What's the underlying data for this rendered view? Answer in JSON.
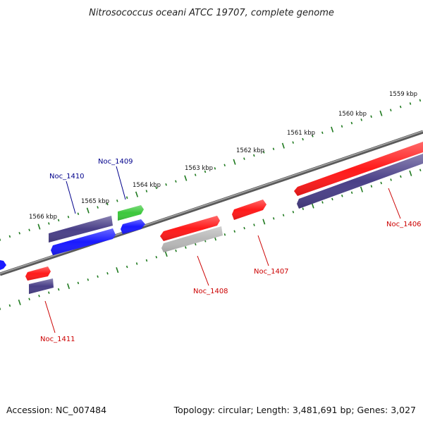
{
  "title": "Nitrosococcus oceani ATCC 19707, complete genome",
  "footer": {
    "accession": "Accession: NC_007484",
    "summary": "Topology: circular; Length: 3,481,691 bp; Genes: 3,027"
  },
  "scale_labels": [
    "1559 kbp",
    "1560 kbp",
    "1561 kbp",
    "1562 kbp",
    "1563 kbp",
    "1564 kbp",
    "1565 kbp",
    "1566 kbp"
  ],
  "colors": {
    "backbone": "#777777",
    "ticks": "#1f7a1f",
    "red_gene": "#ff1a1a",
    "navy_gene": "#4a4088",
    "blue_gene": "#1a1aff",
    "green_gene": "#3cc83c",
    "gray_gene": "#b8b8b8",
    "label_forward": "#00008b",
    "label_reverse": "#cc0000"
  },
  "gene_labels": [
    {
      "text": "Noc_1409",
      "strand": "forward"
    },
    {
      "text": "Noc_1410",
      "strand": "forward"
    },
    {
      "text": "Noc_1406",
      "strand": "reverse"
    },
    {
      "text": "Noc_1407",
      "strand": "reverse"
    },
    {
      "text": "Noc_1408",
      "strand": "reverse"
    },
    {
      "text": "Noc_1411",
      "strand": "reverse"
    }
  ]
}
